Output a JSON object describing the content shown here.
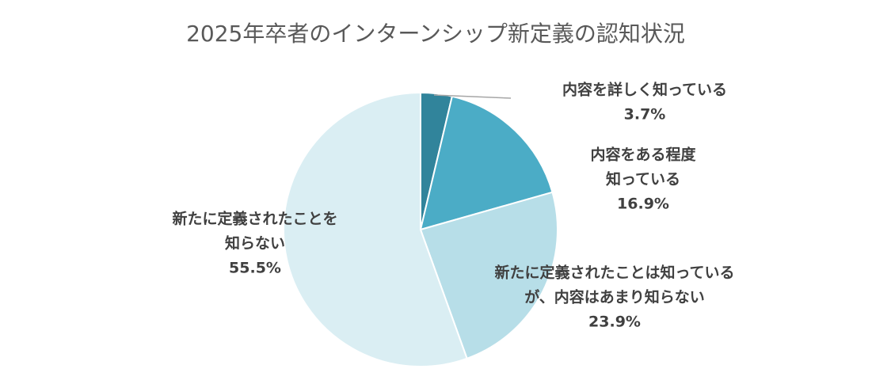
{
  "chart_data": {
    "type": "pie",
    "title": "2025年卒者のインターンシップ新定義の認知状況",
    "start_angle_deg": 0,
    "direction": "clockwise",
    "legend": "none",
    "slices": [
      {
        "label_lines": [
          "内容を詳しく知っている"
        ],
        "value": 3.7,
        "value_label": "3.7%",
        "color": "#31849b"
      },
      {
        "label_lines": [
          "内容をある程度",
          "知っている"
        ],
        "value": 16.9,
        "value_label": "16.9%",
        "color": "#4bacc6"
      },
      {
        "label_lines": [
          "新たに定義されたことは知っている",
          "が、内容はあまり知らない"
        ],
        "value": 23.9,
        "value_label": "23.9%",
        "color": "#b7dee8"
      },
      {
        "label_lines": [
          "新たに定義されたことを",
          "知らない"
        ],
        "value": 55.5,
        "value_label": "55.5%",
        "color": "#daeef3"
      }
    ]
  }
}
